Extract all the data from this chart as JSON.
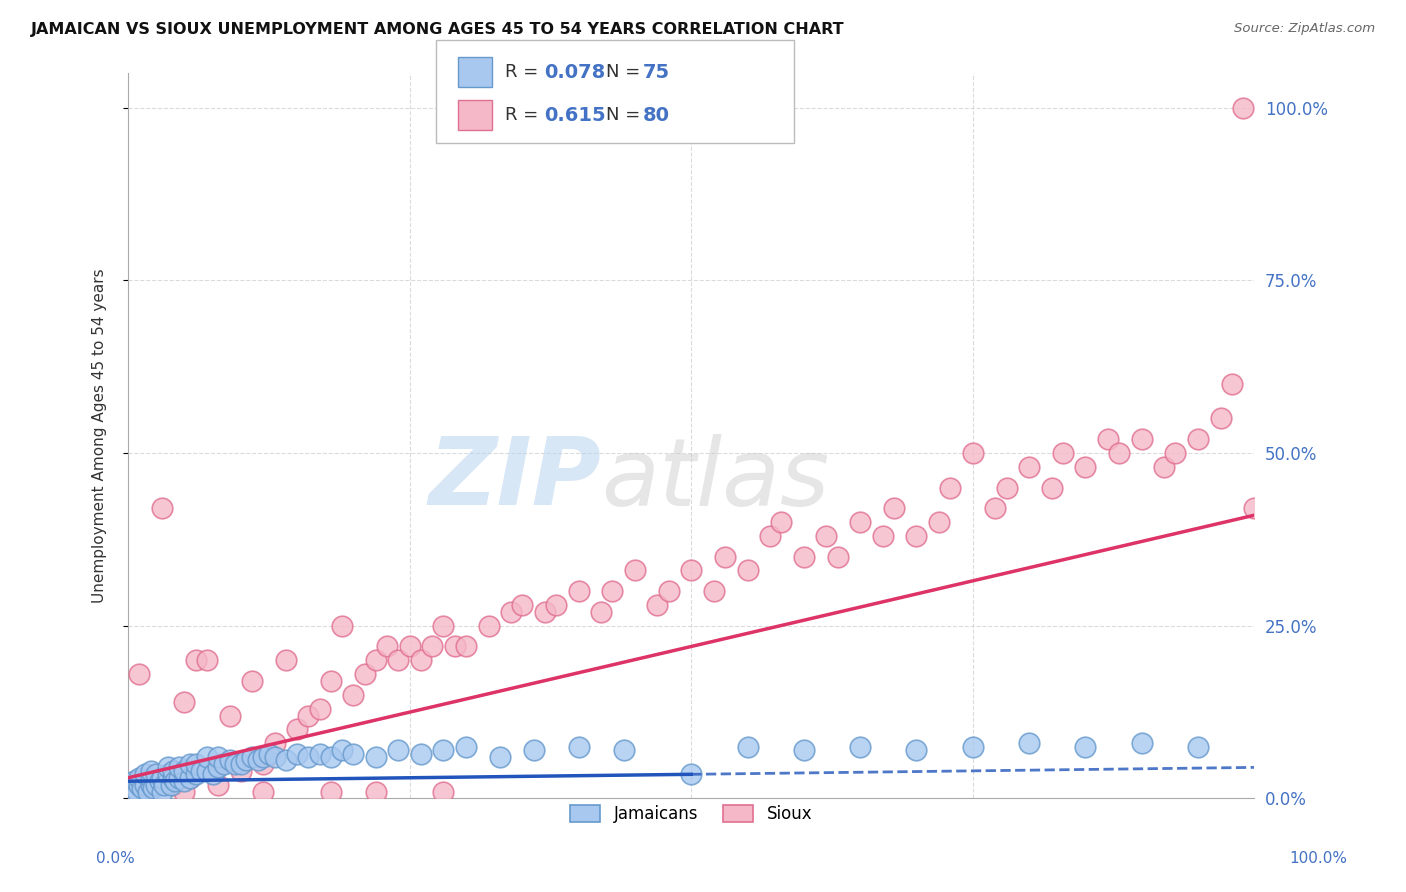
{
  "title": "JAMAICAN VS SIOUX UNEMPLOYMENT AMONG AGES 45 TO 54 YEARS CORRELATION CHART",
  "source": "Source: ZipAtlas.com",
  "ylabel": "Unemployment Among Ages 45 to 54 years",
  "ytick_labels": [
    "0.0%",
    "25.0%",
    "50.0%",
    "75.0%",
    "100.0%"
  ],
  "ytick_values": [
    0,
    25,
    50,
    75,
    100
  ],
  "xtick_labels": [
    "0.0%",
    "100.0%"
  ],
  "xtick_values": [
    0,
    100
  ],
  "xlim": [
    0,
    100
  ],
  "ylim": [
    0,
    105
  ],
  "jamaicans_color": "#a8c8f0",
  "sioux_color": "#f5b8c8",
  "jamaicans_edge": "#6699cc",
  "sioux_edge": "#e07090",
  "trend_blue": "#2255bb",
  "trend_pink": "#dd3366",
  "background_color": "#ffffff",
  "grid_color": "#cccccc",
  "watermark_zip": "ZIP",
  "watermark_atlas": "atlas",
  "jamaicans_x": [
    0.5,
    0.5,
    0.8,
    1.0,
    1.0,
    1.2,
    1.5,
    1.5,
    1.8,
    2.0,
    2.0,
    2.0,
    2.2,
    2.5,
    2.5,
    2.8,
    3.0,
    3.0,
    3.2,
    3.5,
    3.5,
    3.8,
    4.0,
    4.0,
    4.2,
    4.5,
    4.5,
    5.0,
    5.0,
    5.5,
    5.5,
    6.0,
    6.0,
    6.5,
    7.0,
    7.0,
    7.5,
    8.0,
    8.0,
    8.5,
    9.0,
    9.5,
    10.0,
    10.5,
    11.0,
    11.5,
    12.0,
    12.5,
    13.0,
    14.0,
    15.0,
    16.0,
    17.0,
    18.0,
    19.0,
    20.0,
    22.0,
    24.0,
    26.0,
    28.0,
    30.0,
    33.0,
    36.0,
    40.0,
    44.0,
    50.0,
    55.0,
    60.0,
    65.0,
    70.0,
    75.0,
    80.0,
    85.0,
    90.0,
    95.0
  ],
  "jamaicans_y": [
    1.5,
    2.5,
    1.0,
    2.0,
    3.0,
    1.5,
    2.0,
    3.5,
    1.0,
    2.0,
    3.0,
    4.0,
    1.5,
    2.0,
    3.5,
    2.5,
    1.0,
    3.0,
    2.0,
    3.5,
    4.5,
    2.0,
    3.0,
    4.0,
    2.5,
    3.0,
    4.5,
    2.5,
    4.0,
    3.0,
    5.0,
    3.5,
    5.0,
    4.0,
    4.0,
    6.0,
    3.5,
    4.5,
    6.0,
    5.0,
    5.5,
    5.0,
    5.0,
    5.5,
    6.0,
    5.5,
    6.0,
    6.5,
    6.0,
    5.5,
    6.5,
    6.0,
    6.5,
    6.0,
    7.0,
    6.5,
    6.0,
    7.0,
    6.5,
    7.0,
    7.5,
    6.0,
    7.0,
    7.5,
    7.0,
    3.5,
    7.5,
    7.0,
    7.5,
    7.0,
    7.5,
    8.0,
    7.5,
    8.0,
    7.5
  ],
  "sioux_x": [
    1.0,
    2.0,
    3.0,
    4.0,
    5.0,
    5.5,
    6.0,
    7.0,
    8.0,
    9.0,
    10.0,
    11.0,
    12.0,
    13.0,
    14.0,
    15.0,
    16.0,
    17.0,
    18.0,
    19.0,
    20.0,
    21.0,
    22.0,
    23.0,
    24.0,
    25.0,
    26.0,
    27.0,
    28.0,
    29.0,
    30.0,
    32.0,
    34.0,
    35.0,
    37.0,
    38.0,
    40.0,
    42.0,
    43.0,
    45.0,
    47.0,
    48.0,
    50.0,
    52.0,
    53.0,
    55.0,
    57.0,
    58.0,
    60.0,
    62.0,
    63.0,
    65.0,
    67.0,
    68.0,
    70.0,
    72.0,
    73.0,
    75.0,
    77.0,
    78.0,
    80.0,
    82.0,
    83.0,
    85.0,
    87.0,
    88.0,
    90.0,
    92.0,
    93.0,
    95.0,
    97.0,
    98.0,
    99.0,
    100.0,
    5.0,
    8.0,
    12.0,
    18.0,
    22.0,
    28.0
  ],
  "sioux_y": [
    18.0,
    3.0,
    42.0,
    2.0,
    14.0,
    3.0,
    20.0,
    20.0,
    2.0,
    12.0,
    4.0,
    17.0,
    5.0,
    8.0,
    20.0,
    10.0,
    12.0,
    13.0,
    17.0,
    25.0,
    15.0,
    18.0,
    20.0,
    22.0,
    20.0,
    22.0,
    20.0,
    22.0,
    25.0,
    22.0,
    22.0,
    25.0,
    27.0,
    28.0,
    27.0,
    28.0,
    30.0,
    27.0,
    30.0,
    33.0,
    28.0,
    30.0,
    33.0,
    30.0,
    35.0,
    33.0,
    38.0,
    40.0,
    35.0,
    38.0,
    35.0,
    40.0,
    38.0,
    42.0,
    38.0,
    40.0,
    45.0,
    50.0,
    42.0,
    45.0,
    48.0,
    45.0,
    50.0,
    48.0,
    52.0,
    50.0,
    52.0,
    48.0,
    50.0,
    52.0,
    55.0,
    60.0,
    100.0,
    42.0,
    1.0,
    5.0,
    1.0,
    1.0,
    1.0,
    1.0
  ],
  "jam_trend_x0": 0,
  "jam_trend_x_split": 50,
  "jam_trend_x1": 100,
  "jam_trend_slope": 0.02,
  "jam_trend_intercept": 2.5,
  "sioux_trend_x0": 0,
  "sioux_trend_x1": 100,
  "sioux_trend_slope": 0.38,
  "sioux_trend_intercept": 3.0
}
